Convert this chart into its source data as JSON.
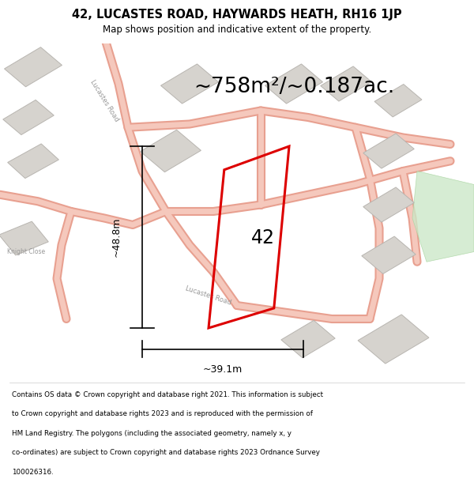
{
  "title": "42, LUCASTES ROAD, HAYWARDS HEATH, RH16 1JP",
  "subtitle": "Map shows position and indicative extent of the property.",
  "area_text": "~758m²/~0.187ac.",
  "label_42": "42",
  "dim_height": "~48.8m",
  "dim_width": "~39.1m",
  "footnote_line1": "Contains OS data © Crown copyright and database right 2021. This information is subject",
  "footnote_line2": "to Crown copyright and database rights 2023 and is reproduced with the permission of",
  "footnote_line3": "HM Land Registry. The polygons (including the associated geometry, namely x, y",
  "footnote_line4": "co-ordinates) are subject to Crown copyright and database rights 2023 Ordnance Survey",
  "footnote_line5": "100026316.",
  "bg_color": "#ffffff",
  "map_bg": "#f8f5f2",
  "road_fill": "#f5c8bc",
  "road_edge": "#e8a090",
  "building_fill": "#d6d3ce",
  "building_edge": "#b8b5b0",
  "property_color": "#dd0000",
  "text_color": "#000000",
  "dim_color": "#000000",
  "green_fill": "#cce8c8",
  "green_edge": "#a8d4a0",
  "road_label_color": "#999999",
  "sep_line_color": "#cccccc"
}
